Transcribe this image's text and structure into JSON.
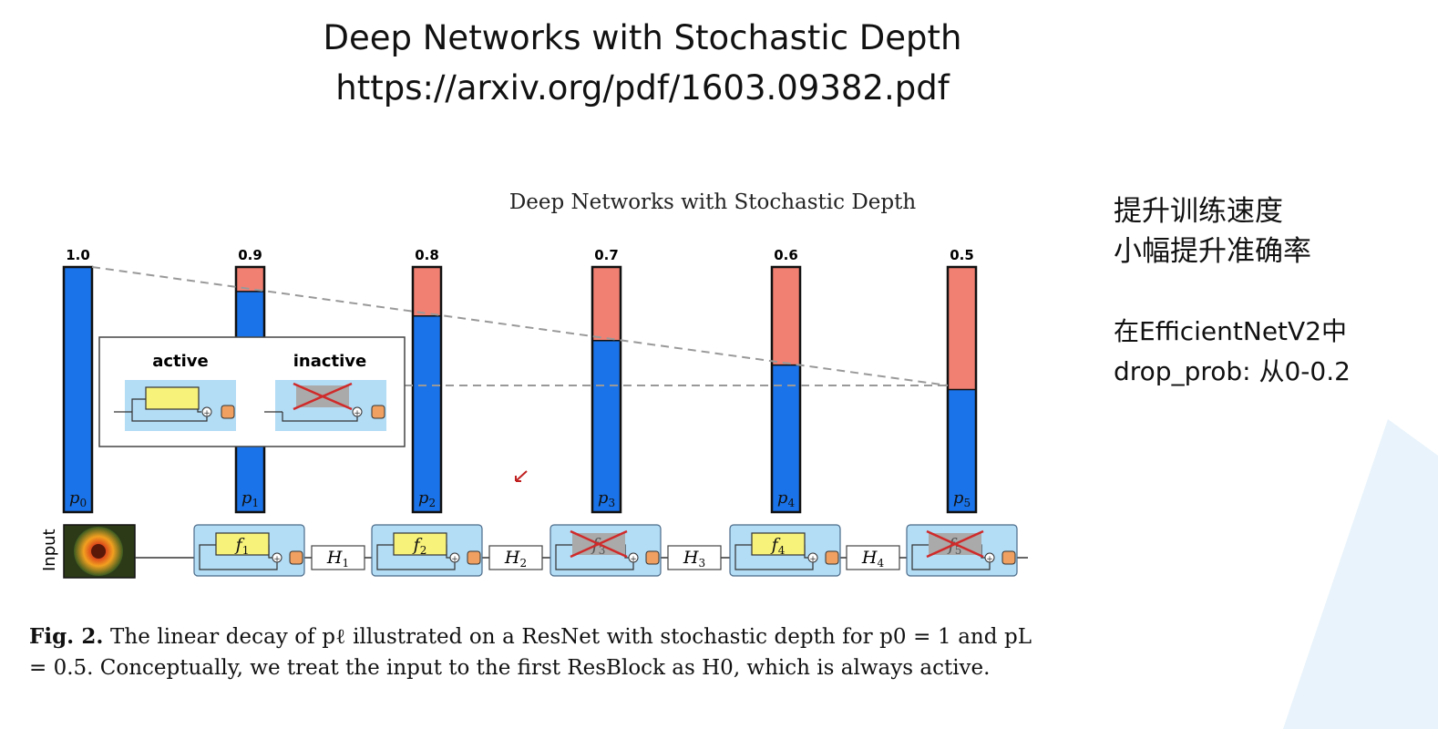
{
  "slide": {
    "title": "Deep Networks with Stochastic Depth",
    "url": "https://arxiv.org/pdf/1603.09382.pdf"
  },
  "notes": {
    "line1": "提升训练速度",
    "line2": "小幅提升准确率",
    "line3": "在EfficientNetV2中",
    "line4": "drop_prob: 从0-0.2"
  },
  "figure": {
    "title": "Deep Networks with Stochastic Depth",
    "input_label": "Input",
    "legend": {
      "active": "active",
      "inactive": "inactive"
    },
    "blocks": [
      {
        "label": "f",
        "sub": "1",
        "active": true
      },
      {
        "label": "f",
        "sub": "2",
        "active": true
      },
      {
        "label": "f",
        "sub": "3",
        "active": false
      },
      {
        "label": "f",
        "sub": "4",
        "active": true
      },
      {
        "label": "f",
        "sub": "5",
        "active": false
      }
    ],
    "hidden": [
      {
        "label": "H",
        "sub": "1"
      },
      {
        "label": "H",
        "sub": "2"
      },
      {
        "label": "H",
        "sub": "3"
      },
      {
        "label": "H",
        "sub": "4"
      }
    ],
    "colors": {
      "survive": "#1a73e8",
      "drop": "#f28072",
      "block_bg": "#b3dcf5",
      "fn": "#f7f27a",
      "add": "#f0a060"
    }
  },
  "chart_data": {
    "type": "bar",
    "categories": [
      "p0",
      "p1",
      "p2",
      "p3",
      "p4",
      "p5"
    ],
    "value_labels": [
      "1.0",
      "0.9",
      "0.8",
      "0.7",
      "0.6",
      "0.5"
    ],
    "values": [
      1.0,
      0.9,
      0.8,
      0.7,
      0.6,
      0.5
    ],
    "ylim": [
      0,
      1
    ]
  },
  "caption": {
    "fig_label": "Fig. 2.",
    "line1": "The linear decay of pℓ illustrated on a ResNet with stochastic depth for p0 = 1",
    "line2": "and pL = 0.5. Conceptually, we treat the input to the first ResBlock as H0, which is",
    "line3": "always active."
  }
}
